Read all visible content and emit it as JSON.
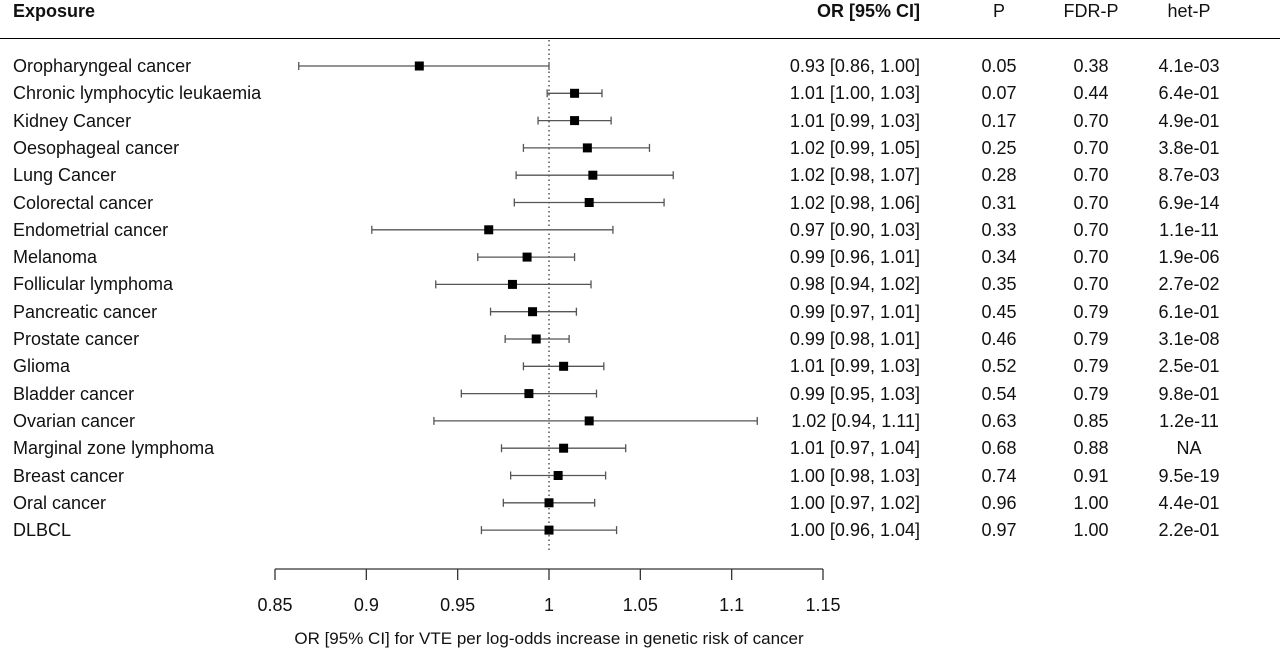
{
  "chart_data": {
    "type": "forest",
    "columns": {
      "exposure": "Exposure",
      "or": "OR [95% CI]",
      "p": "P",
      "fdr_p": "FDR-P",
      "het_p": "het-P"
    },
    "xlabel": "OR [95% CI] for VTE per log-odds increase in genetic risk of cancer",
    "xlim": [
      0.85,
      1.15
    ],
    "xticks": [
      0.85,
      0.9,
      0.95,
      1,
      1.05,
      1.1,
      1.15
    ],
    "xtick_labels": [
      "0.85",
      "0.9",
      "0.95",
      "1",
      "1.05",
      "1.1",
      "1.15"
    ],
    "reference_line": 1,
    "rows": [
      {
        "label": "Oropharyngeal cancer",
        "or": 0.929,
        "lo": 0.863,
        "hi": 1.0,
        "or_text": "0.93 [0.86, 1.00]",
        "p": "0.05",
        "fdr_p": "0.38",
        "het_p": "4.1e-03"
      },
      {
        "label": "Chronic lymphocytic leukaemia",
        "or": 1.014,
        "lo": 0.999,
        "hi": 1.029,
        "or_text": "1.01 [1.00, 1.03]",
        "p": "0.07",
        "fdr_p": "0.44",
        "het_p": "6.4e-01"
      },
      {
        "label": "Kidney Cancer",
        "or": 1.014,
        "lo": 0.994,
        "hi": 1.034,
        "or_text": "1.01 [0.99, 1.03]",
        "p": "0.17",
        "fdr_p": "0.70",
        "het_p": "4.9e-01"
      },
      {
        "label": "Oesophageal cancer",
        "or": 1.021,
        "lo": 0.986,
        "hi": 1.055,
        "or_text": "1.02 [0.99, 1.05]",
        "p": "0.25",
        "fdr_p": "0.70",
        "het_p": "3.8e-01"
      },
      {
        "label": "Lung Cancer",
        "or": 1.024,
        "lo": 0.982,
        "hi": 1.068,
        "or_text": "1.02 [0.98, 1.07]",
        "p": "0.28",
        "fdr_p": "0.70",
        "het_p": "8.7e-03"
      },
      {
        "label": "Colorectal cancer",
        "or": 1.022,
        "lo": 0.981,
        "hi": 1.063,
        "or_text": "1.02 [0.98, 1.06]",
        "p": "0.31",
        "fdr_p": "0.70",
        "het_p": "6.9e-14"
      },
      {
        "label": "Endometrial cancer",
        "or": 0.967,
        "lo": 0.903,
        "hi": 1.035,
        "or_text": "0.97 [0.90, 1.03]",
        "p": "0.33",
        "fdr_p": "0.70",
        "het_p": "1.1e-11"
      },
      {
        "label": "Melanoma",
        "or": 0.988,
        "lo": 0.961,
        "hi": 1.014,
        "or_text": "0.99 [0.96, 1.01]",
        "p": "0.34",
        "fdr_p": "0.70",
        "het_p": "1.9e-06"
      },
      {
        "label": "Follicular lymphoma",
        "or": 0.98,
        "lo": 0.938,
        "hi": 1.023,
        "or_text": "0.98 [0.94, 1.02]",
        "p": "0.35",
        "fdr_p": "0.70",
        "het_p": "2.7e-02"
      },
      {
        "label": "Pancreatic cancer",
        "or": 0.991,
        "lo": 0.968,
        "hi": 1.015,
        "or_text": "0.99 [0.97, 1.01]",
        "p": "0.45",
        "fdr_p": "0.79",
        "het_p": "6.1e-01"
      },
      {
        "label": "Prostate cancer",
        "or": 0.993,
        "lo": 0.976,
        "hi": 1.011,
        "or_text": "0.99 [0.98, 1.01]",
        "p": "0.46",
        "fdr_p": "0.79",
        "het_p": "3.1e-08"
      },
      {
        "label": "Glioma",
        "or": 1.008,
        "lo": 0.986,
        "hi": 1.03,
        "or_text": "1.01 [0.99, 1.03]",
        "p": "0.52",
        "fdr_p": "0.79",
        "het_p": "2.5e-01"
      },
      {
        "label": "Bladder cancer",
        "or": 0.989,
        "lo": 0.952,
        "hi": 1.026,
        "or_text": "0.99 [0.95, 1.03]",
        "p": "0.54",
        "fdr_p": "0.79",
        "het_p": "9.8e-01"
      },
      {
        "label": "Ovarian cancer",
        "or": 1.022,
        "lo": 0.937,
        "hi": 1.114,
        "or_text": "1.02 [0.94, 1.11]",
        "p": "0.63",
        "fdr_p": "0.85",
        "het_p": "1.2e-11"
      },
      {
        "label": "Marginal zone lymphoma",
        "or": 1.008,
        "lo": 0.974,
        "hi": 1.042,
        "or_text": "1.01 [0.97, 1.04]",
        "p": "0.68",
        "fdr_p": "0.88",
        "het_p": "NA"
      },
      {
        "label": "Breast cancer",
        "or": 1.005,
        "lo": 0.979,
        "hi": 1.031,
        "or_text": "1.00 [0.98, 1.03]",
        "p": "0.74",
        "fdr_p": "0.91",
        "het_p": "9.5e-19"
      },
      {
        "label": "Oral cancer",
        "or": 1.0,
        "lo": 0.975,
        "hi": 1.025,
        "or_text": "1.00 [0.97, 1.02]",
        "p": "0.96",
        "fdr_p": "1.00",
        "het_p": "4.4e-01"
      },
      {
        "label": "DLBCL",
        "or": 1.0,
        "lo": 0.963,
        "hi": 1.037,
        "or_text": "1.00 [0.96, 1.04]",
        "p": "0.97",
        "fdr_p": "1.00",
        "het_p": "2.2e-01"
      }
    ]
  }
}
